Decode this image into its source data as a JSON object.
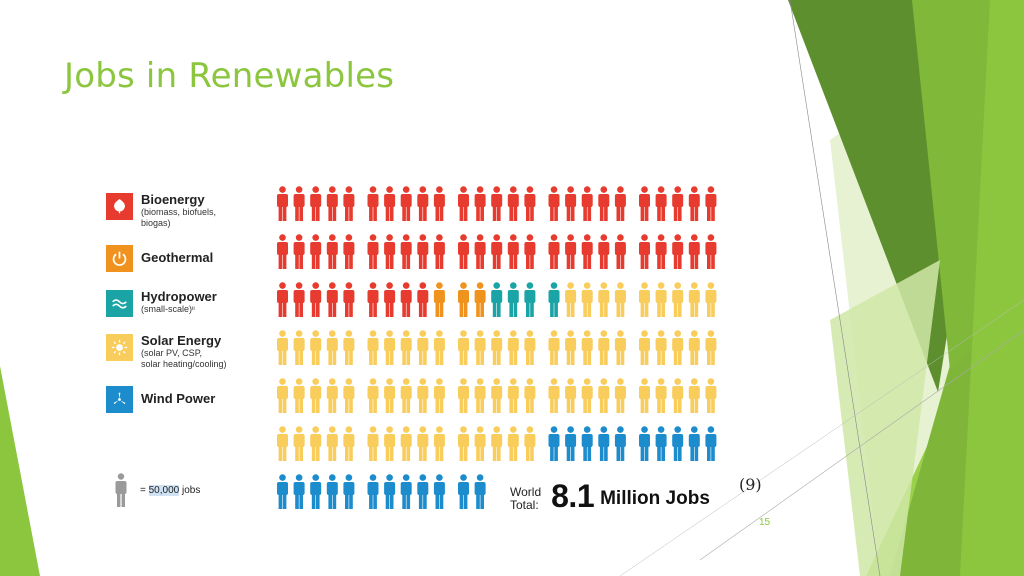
{
  "slide": {
    "title": "Jobs in Renewables",
    "reference": "(9)",
    "page_number": "15"
  },
  "legend": [
    {
      "name": "Bioenergy",
      "sub": "(biomass, biofuels,|biogas)",
      "color": "#e63b2e",
      "icon": "leaf-icon"
    },
    {
      "name": "Geothermal",
      "sub": "",
      "color": "#f0931e",
      "icon": "power-icon"
    },
    {
      "name": "Hydropower",
      "sub": "(small-scale)ᶦᶦ",
      "color": "#1ba4a6",
      "icon": "waves-icon"
    },
    {
      "name": "Solar Energy",
      "sub": "(solar PV, CSP,|solar heating/cooling)",
      "color": "#f9cd5b",
      "icon": "sun-icon"
    },
    {
      "name": "Wind Power",
      "sub": "",
      "color": "#1c8ccd",
      "icon": "turbine-icon"
    }
  ],
  "key": {
    "prefix": "= ",
    "value": "50,000",
    "suffix": " jobs"
  },
  "total": {
    "label_line1": "World",
    "label_line2": "Total:",
    "number": "8.1",
    "unit": "Million Jobs"
  },
  "pictogram": {
    "unit_jobs": 50000,
    "rows": [
      [
        "Bioenergy",
        "Bioenergy",
        "Bioenergy",
        "Bioenergy",
        "Bioenergy",
        "Bioenergy",
        "Bioenergy",
        "Bioenergy",
        "Bioenergy",
        "Bioenergy",
        "Bioenergy",
        "Bioenergy",
        "Bioenergy",
        "Bioenergy",
        "Bioenergy",
        "Bioenergy",
        "Bioenergy",
        "Bioenergy",
        "Bioenergy",
        "Bioenergy",
        "Bioenergy",
        "Bioenergy",
        "Bioenergy",
        "Bioenergy",
        "Bioenergy"
      ],
      [
        "Bioenergy",
        "Bioenergy",
        "Bioenergy",
        "Bioenergy",
        "Bioenergy",
        "Bioenergy",
        "Bioenergy",
        "Bioenergy",
        "Bioenergy",
        "Bioenergy",
        "Bioenergy",
        "Bioenergy",
        "Bioenergy",
        "Bioenergy",
        "Bioenergy",
        "Bioenergy",
        "Bioenergy",
        "Bioenergy",
        "Bioenergy",
        "Bioenergy",
        "Bioenergy",
        "Bioenergy",
        "Bioenergy",
        "Bioenergy",
        "Bioenergy"
      ],
      [
        "Bioenergy",
        "Bioenergy",
        "Bioenergy",
        "Bioenergy",
        "Bioenergy",
        "Bioenergy",
        "Bioenergy",
        "Bioenergy",
        "Bioenergy",
        "Geothermal",
        "Geothermal",
        "Geothermal",
        "Hydropower",
        "Hydropower",
        "Hydropower",
        "Hydropower",
        "Solar Energy",
        "Solar Energy",
        "Solar Energy",
        "Solar Energy",
        "Solar Energy",
        "Solar Energy",
        "Solar Energy",
        "Solar Energy",
        "Solar Energy"
      ],
      [
        "Solar Energy",
        "Solar Energy",
        "Solar Energy",
        "Solar Energy",
        "Solar Energy",
        "Solar Energy",
        "Solar Energy",
        "Solar Energy",
        "Solar Energy",
        "Solar Energy",
        "Solar Energy",
        "Solar Energy",
        "Solar Energy",
        "Solar Energy",
        "Solar Energy",
        "Solar Energy",
        "Solar Energy",
        "Solar Energy",
        "Solar Energy",
        "Solar Energy",
        "Solar Energy",
        "Solar Energy",
        "Solar Energy",
        "Solar Energy",
        "Solar Energy"
      ],
      [
        "Solar Energy",
        "Solar Energy",
        "Solar Energy",
        "Solar Energy",
        "Solar Energy",
        "Solar Energy",
        "Solar Energy",
        "Solar Energy",
        "Solar Energy",
        "Solar Energy",
        "Solar Energy",
        "Solar Energy",
        "Solar Energy",
        "Solar Energy",
        "Solar Energy",
        "Solar Energy",
        "Solar Energy",
        "Solar Energy",
        "Solar Energy",
        "Solar Energy",
        "Solar Energy",
        "Solar Energy",
        "Solar Energy",
        "Solar Energy",
        "Solar Energy"
      ],
      [
        "Solar Energy",
        "Solar Energy",
        "Solar Energy",
        "Solar Energy",
        "Solar Energy",
        "Solar Energy",
        "Solar Energy",
        "Solar Energy",
        "Solar Energy",
        "Solar Energy",
        "Solar Energy",
        "Solar Energy",
        "Solar Energy",
        "Solar Energy",
        "Solar Energy",
        "Wind Power",
        "Wind Power",
        "Wind Power",
        "Wind Power",
        "Wind Power",
        "Wind Power",
        "Wind Power",
        "Wind Power",
        "Wind Power",
        "Wind Power"
      ],
      [
        "Wind Power",
        "Wind Power",
        "Wind Power",
        "Wind Power",
        "Wind Power",
        "Wind Power",
        "Wind Power",
        "Wind Power",
        "Wind Power",
        "Wind Power",
        "Wind Power",
        "Wind Power"
      ]
    ]
  },
  "colors": {
    "title": "#8cc63f",
    "key_figure": "#9a9a9a",
    "green_dark": "#5e8f2e",
    "green_mid": "#7fb539",
    "green_light": "#9bd04a",
    "green_pale": "#cfe8a7"
  }
}
